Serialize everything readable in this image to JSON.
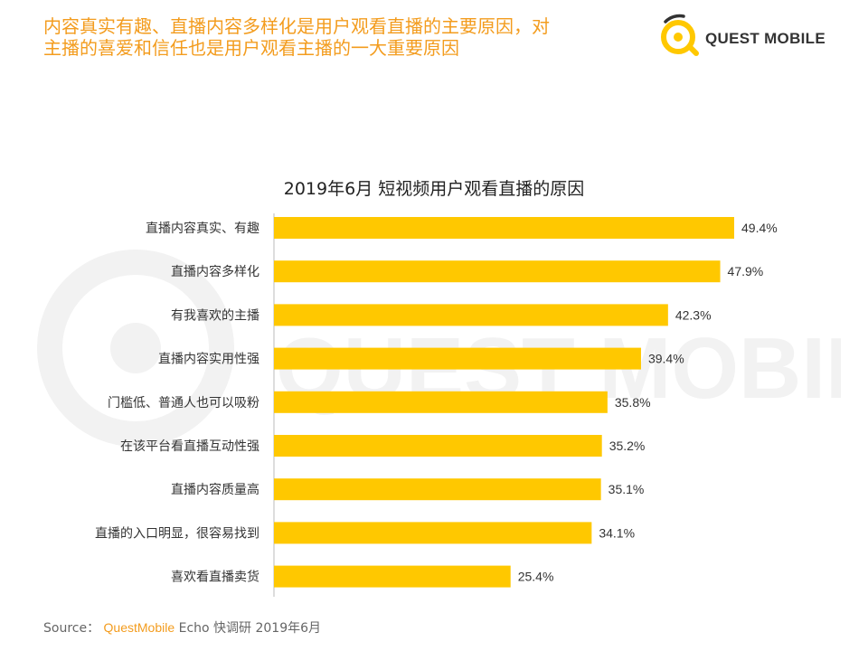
{
  "headline": {
    "line1": "内容真实有趣、直播内容多样化是用户观看直播的主要原因，对",
    "line2": "主播的喜爱和信任也是用户观看主播的一大重要原因"
  },
  "logo": {
    "text": "QUEST MOBILE"
  },
  "watermark": {
    "text": "QUEST MOBILE"
  },
  "colors": {
    "bar": "#FFC800",
    "headline": "#F39C1E",
    "axis": "#BBBBBB"
  },
  "chart_data": {
    "type": "bar",
    "orientation": "horizontal",
    "title": "2019年6月 短视频用户观看直播的原因",
    "categories": [
      "直播内容真实、有趣",
      "直播内容多样化",
      "有我喜欢的主播",
      "直播内容实用性强",
      "门槛低、普通人也可以吸粉",
      "在该平台看直播互动性强",
      "直播内容质量高",
      "直播的入口明显，很容易找到",
      "喜欢看直播卖货"
    ],
    "values": [
      49.4,
      47.9,
      42.3,
      39.4,
      35.8,
      35.2,
      35.1,
      34.1,
      25.4
    ],
    "value_labels": [
      "49.4%",
      "47.9%",
      "42.3%",
      "39.4%",
      "35.8%",
      "35.2%",
      "35.1%",
      "34.1%",
      "25.4%"
    ],
    "unit": "%",
    "xlim": [
      0,
      50
    ],
    "grid": false,
    "legend": "none"
  },
  "source": {
    "label": "Source：",
    "brand": "QuestMobile",
    "rest": "Echo 快调研 2019年6月"
  }
}
